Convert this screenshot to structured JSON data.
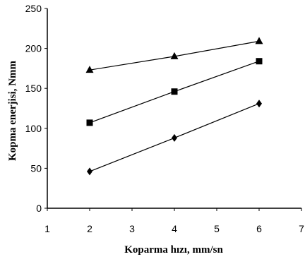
{
  "chart_data": {
    "type": "line",
    "title": "",
    "xlabel": "Koparma hızı, mm/sn",
    "ylabel": "Kopma enerjisi, Nmm",
    "xlim": [
      1,
      7
    ],
    "ylim": [
      0,
      250
    ],
    "x_ticks": [
      "1",
      "2",
      "3",
      "4",
      "5",
      "6",
      "7"
    ],
    "y_ticks": [
      "0",
      "50",
      "100",
      "150",
      "200",
      "250"
    ],
    "grid": false,
    "legend": "none",
    "series": [
      {
        "marker": "triangle",
        "x": [
          2,
          4,
          6
        ],
        "y": [
          173,
          190,
          209
        ]
      },
      {
        "marker": "square",
        "x": [
          2,
          4,
          6
        ],
        "y": [
          107,
          146,
          184
        ]
      },
      {
        "marker": "diamond",
        "x": [
          2,
          4,
          6
        ],
        "y": [
          46,
          88,
          131
        ]
      }
    ],
    "colors": {
      "line": "#000000",
      "marker": "#000000"
    }
  }
}
